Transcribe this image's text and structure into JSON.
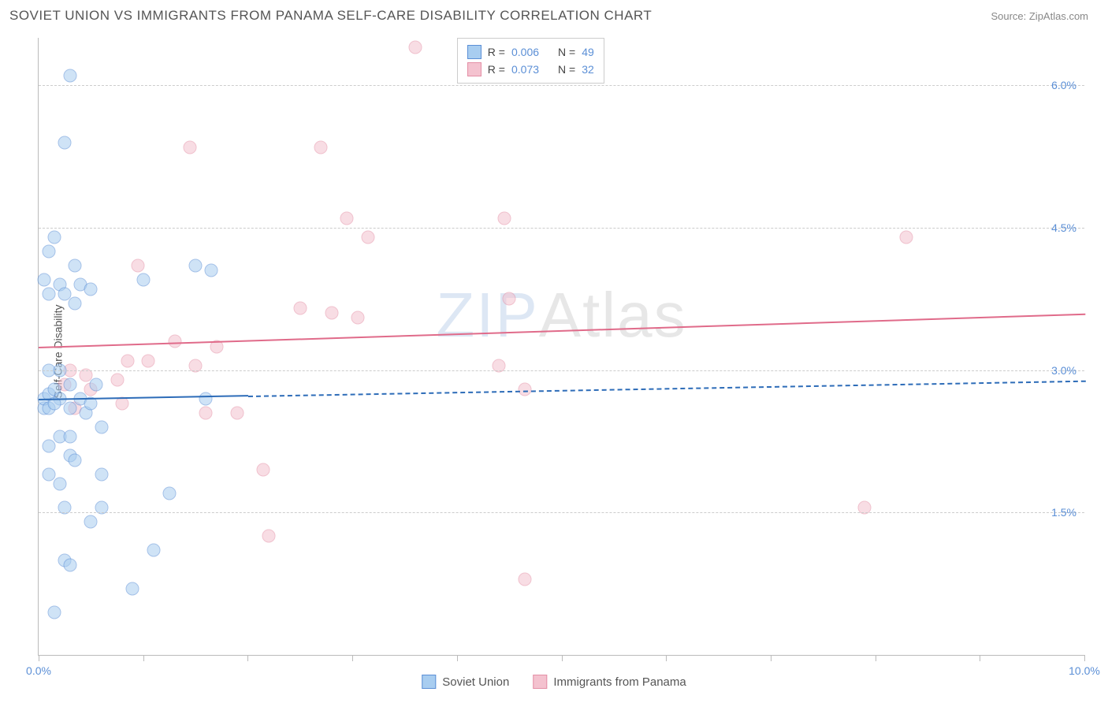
{
  "header": {
    "title": "SOVIET UNION VS IMMIGRANTS FROM PANAMA SELF-CARE DISABILITY CORRELATION CHART",
    "source": "Source: ZipAtlas.com"
  },
  "axes": {
    "ylabel": "Self-Care Disability",
    "xlim": [
      0.0,
      10.0
    ],
    "ylim": [
      0.0,
      6.5
    ],
    "yticks": [
      1.5,
      3.0,
      4.5,
      6.0
    ],
    "ytick_labels": [
      "1.5%",
      "3.0%",
      "4.5%",
      "6.0%"
    ],
    "xticks": [
      0.0,
      1.0,
      2.0,
      3.0,
      4.0,
      5.0,
      6.0,
      7.0,
      8.0,
      9.0,
      10.0
    ],
    "xtick_labels": {
      "start": "0.0%",
      "end": "10.0%"
    }
  },
  "series": {
    "soviet": {
      "label": "Soviet Union",
      "fill": "#a8cdf0",
      "stroke": "#5b8fd6",
      "trend": {
        "y_start": 2.7,
        "y_end": 2.9,
        "solid_until_x": 2.0,
        "color": "#2d6cb8"
      },
      "stats": {
        "R_label": "R =",
        "R": "0.006",
        "N_label": "N =",
        "N": "49"
      },
      "points": [
        [
          0.05,
          2.6
        ],
        [
          0.05,
          2.7
        ],
        [
          0.1,
          2.75
        ],
        [
          0.1,
          2.6
        ],
        [
          0.15,
          2.8
        ],
        [
          0.2,
          2.7
        ],
        [
          0.15,
          2.65
        ],
        [
          0.1,
          3.0
        ],
        [
          0.2,
          3.0
        ],
        [
          0.3,
          2.85
        ],
        [
          0.4,
          2.7
        ],
        [
          0.3,
          2.6
        ],
        [
          0.1,
          4.25
        ],
        [
          0.35,
          4.1
        ],
        [
          0.4,
          3.9
        ],
        [
          0.5,
          3.85
        ],
        [
          0.35,
          3.7
        ],
        [
          0.3,
          6.1
        ],
        [
          0.25,
          5.4
        ],
        [
          0.2,
          2.3
        ],
        [
          0.3,
          2.3
        ],
        [
          0.3,
          2.1
        ],
        [
          0.35,
          2.05
        ],
        [
          0.1,
          2.2
        ],
        [
          0.1,
          1.9
        ],
        [
          0.2,
          1.8
        ],
        [
          0.25,
          1.55
        ],
        [
          0.5,
          1.4
        ],
        [
          0.6,
          1.55
        ],
        [
          0.25,
          1.0
        ],
        [
          0.3,
          0.95
        ],
        [
          0.15,
          0.45
        ],
        [
          0.9,
          0.7
        ],
        [
          1.1,
          1.1
        ],
        [
          0.6,
          1.9
        ],
        [
          1.5,
          4.1
        ],
        [
          1.65,
          4.05
        ],
        [
          1.0,
          3.95
        ],
        [
          1.25,
          1.7
        ],
        [
          1.6,
          2.7
        ],
        [
          0.05,
          3.95
        ],
        [
          0.1,
          3.8
        ],
        [
          0.2,
          3.9
        ],
        [
          0.25,
          3.8
        ],
        [
          0.15,
          4.4
        ],
        [
          0.45,
          2.55
        ],
        [
          0.5,
          2.65
        ],
        [
          0.55,
          2.85
        ],
        [
          0.6,
          2.4
        ]
      ]
    },
    "panama": {
      "label": "Immigrants from Panama",
      "fill": "#f4c2cf",
      "stroke": "#e48fa6",
      "trend": {
        "y_start": 3.25,
        "y_end": 3.6,
        "solid_until_x": 10.0,
        "color": "#e06b8a"
      },
      "stats": {
        "R_label": "R =",
        "R": "0.073",
        "N_label": "N =",
        "N": "32"
      },
      "points": [
        [
          3.6,
          6.4
        ],
        [
          2.7,
          5.35
        ],
        [
          1.45,
          5.35
        ],
        [
          2.95,
          4.6
        ],
        [
          4.45,
          4.6
        ],
        [
          8.3,
          4.4
        ],
        [
          3.15,
          4.4
        ],
        [
          2.5,
          3.65
        ],
        [
          2.8,
          3.6
        ],
        [
          3.05,
          3.55
        ],
        [
          4.5,
          3.75
        ],
        [
          1.3,
          3.3
        ],
        [
          1.7,
          3.25
        ],
        [
          1.05,
          3.1
        ],
        [
          0.85,
          3.1
        ],
        [
          1.5,
          3.05
        ],
        [
          0.45,
          2.95
        ],
        [
          0.75,
          2.9
        ],
        [
          0.5,
          2.8
        ],
        [
          0.3,
          3.0
        ],
        [
          0.25,
          2.85
        ],
        [
          4.4,
          3.05
        ],
        [
          4.65,
          2.8
        ],
        [
          1.6,
          2.55
        ],
        [
          1.9,
          2.55
        ],
        [
          2.15,
          1.95
        ],
        [
          2.2,
          1.25
        ],
        [
          4.65,
          0.8
        ],
        [
          7.9,
          1.55
        ],
        [
          0.35,
          2.6
        ],
        [
          0.95,
          4.1
        ],
        [
          0.8,
          2.65
        ]
      ]
    }
  },
  "watermark": {
    "part1": "ZIP",
    "part2": "Atlas"
  },
  "background_color": "#ffffff",
  "grid_color": "#cccccc"
}
